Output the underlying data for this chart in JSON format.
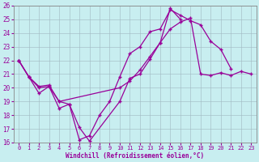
{
  "xlabel": "Windchill (Refroidissement éolien,°C)",
  "bg_color": "#c8eef0",
  "line_color": "#990099",
  "xlim": [
    -0.5,
    23.5
  ],
  "ylim": [
    16,
    26
  ],
  "xticks": [
    0,
    1,
    2,
    3,
    4,
    5,
    6,
    7,
    8,
    9,
    10,
    11,
    12,
    13,
    14,
    15,
    16,
    17,
    18,
    19,
    20,
    21,
    22,
    23
  ],
  "yticks": [
    16,
    17,
    18,
    19,
    20,
    21,
    22,
    23,
    24,
    25,
    26
  ],
  "line1": {
    "x": [
      0,
      1,
      2,
      3,
      4,
      5,
      6,
      7,
      8,
      9,
      10,
      11,
      12,
      13,
      14,
      15,
      16,
      17,
      18,
      19,
      20,
      21
    ],
    "y": [
      22,
      20.8,
      20.0,
      20.1,
      18.5,
      18.8,
      16.2,
      16.5,
      18.0,
      19.0,
      20.8,
      22.5,
      23.0,
      24.1,
      24.3,
      25.7,
      25.3,
      24.9,
      24.6,
      23.4,
      22.8,
      21.4
    ]
  },
  "line2": {
    "x": [
      0,
      1,
      2,
      3,
      4,
      5,
      6,
      7,
      10,
      11,
      12,
      13,
      14,
      15,
      16
    ],
    "y": [
      22,
      20.8,
      19.6,
      20.1,
      19.0,
      18.8,
      17.1,
      16.1,
      19.0,
      20.7,
      21.0,
      22.1,
      23.3,
      25.8,
      25.0
    ]
  },
  "line3": {
    "x": [
      0,
      1,
      2,
      3,
      4,
      10,
      11,
      12,
      13,
      14,
      15,
      16,
      17,
      18,
      19,
      20,
      21,
      22,
      23
    ],
    "y": [
      22,
      20.8,
      20.1,
      20.2,
      19.0,
      20.0,
      20.5,
      21.3,
      22.3,
      23.3,
      24.3,
      24.8,
      25.1,
      21.0,
      20.9,
      21.1,
      20.9,
      21.2,
      21.0
    ]
  }
}
